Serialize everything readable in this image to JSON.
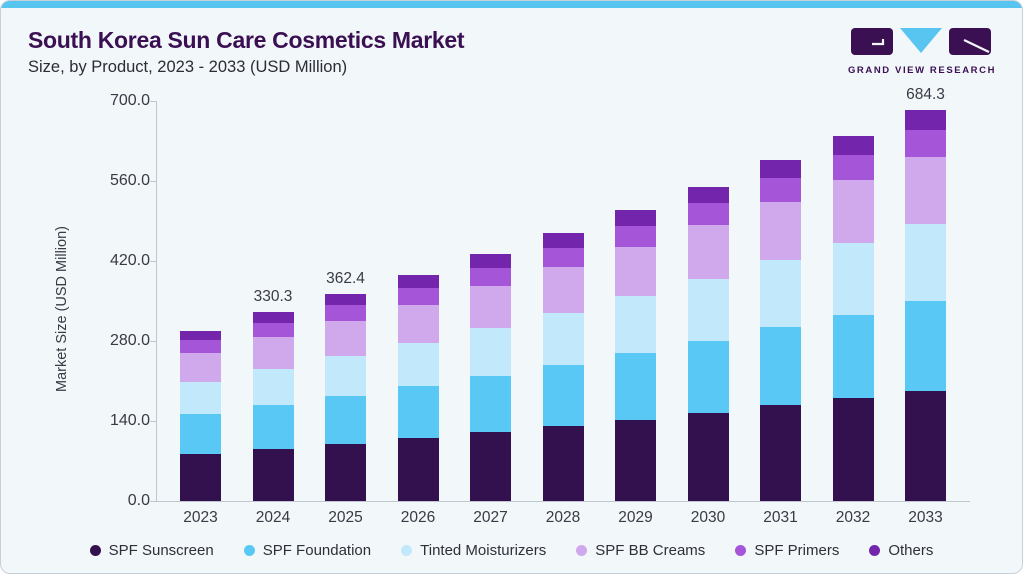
{
  "header": {
    "title": "South Korea Sun Care Cosmetics Market",
    "subtitle": "Size, by Product, 2023 - 2033 (USD Million)",
    "logo_text": "GRAND VIEW RESEARCH"
  },
  "colors": {
    "accent_bar": "#58c5f0",
    "title_text": "#3b1053",
    "axis_text": "#3a3a44",
    "card_background": "#f2f7fa"
  },
  "chart_data": {
    "type": "bar",
    "stacked": true,
    "title": "South Korea Sun Care Cosmetics Market Size, by Product, 2023 - 2033 (USD Million)",
    "xlabel": "",
    "ylabel": "Market Size (USD Million)",
    "ylim": [
      0,
      700
    ],
    "yticks": [
      "0.0",
      "140.0",
      "280.0",
      "420.0",
      "560.0",
      "700.0"
    ],
    "grid": false,
    "legend_position": "bottom",
    "categories": [
      "2023",
      "2024",
      "2025",
      "2026",
      "2027",
      "2028",
      "2029",
      "2030",
      "2031",
      "2032",
      "2033"
    ],
    "series": [
      {
        "name": "SPF Sunscreen",
        "color": "#33114e",
        "values": [
          83.0,
          91.5,
          100.5,
          109.5,
          120.0,
          130.5,
          142.0,
          154.0,
          167.5,
          179.5,
          193.0
        ]
      },
      {
        "name": "SPF Foundation",
        "color": "#5ac8f5",
        "values": [
          70.0,
          77.0,
          84.0,
          91.0,
          99.5,
          108.0,
          117.0,
          126.5,
          137.0,
          146.5,
          157.0
        ]
      },
      {
        "name": "Tinted Moisturizers",
        "color": "#c1e9fb",
        "values": [
          55.5,
          62.5,
          69.0,
          76.0,
          83.5,
          91.0,
          99.0,
          107.5,
          117.0,
          125.5,
          135.0
        ]
      },
      {
        "name": "SPF BB Creams",
        "color": "#d0a9ec",
        "values": [
          51.0,
          56.0,
          61.5,
          67.0,
          73.5,
          80.0,
          87.0,
          94.5,
          102.5,
          109.5,
          117.5
        ]
      },
      {
        "name": "SPF Primers",
        "color": "#a455d8",
        "values": [
          22.0,
          24.8,
          27.2,
          29.5,
          32.0,
          34.0,
          36.6,
          39.0,
          42.0,
          44.5,
          47.3
        ]
      },
      {
        "name": "Others",
        "color": "#7326ab",
        "values": [
          15.3,
          18.5,
          20.2,
          21.8,
          23.5,
          25.2,
          27.0,
          28.9,
          31.3,
          32.6,
          34.5
        ]
      }
    ],
    "totals": [
      296.8,
      330.3,
      362.4,
      394.8,
      432.0,
      468.7,
      508.6,
      550.4,
      597.3,
      638.1,
      684.3
    ],
    "total_labels": {
      "2024": "330.3",
      "2025": "362.4",
      "2033": "684.3"
    }
  }
}
